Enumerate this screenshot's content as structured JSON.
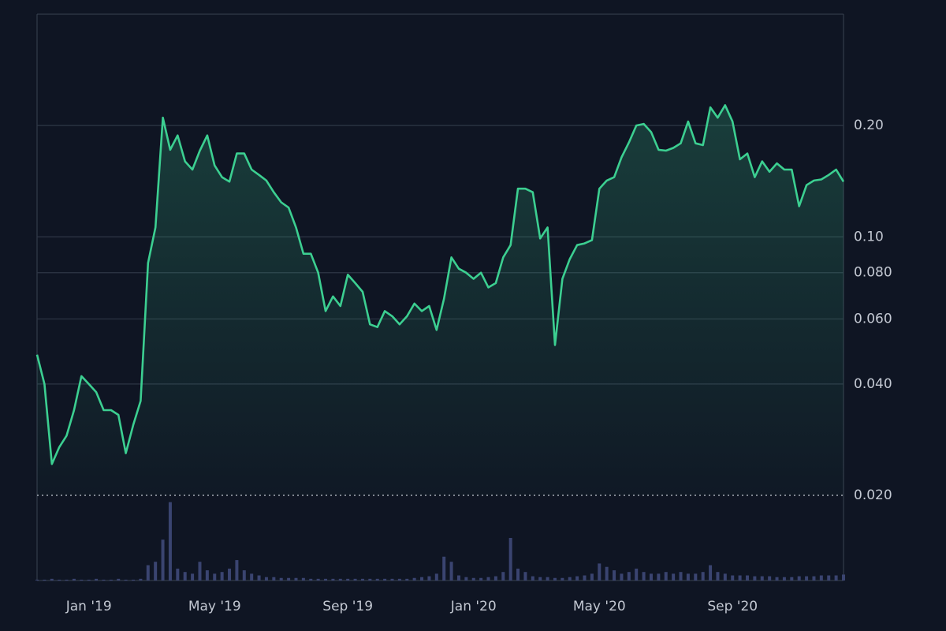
{
  "chart_data": {
    "type": "line",
    "log_y": true,
    "grid": true,
    "categories": [
      null,
      null,
      null,
      null,
      null,
      null,
      null,
      "Jan '19",
      null,
      null,
      null,
      null,
      null,
      null,
      null,
      null,
      null,
      null,
      null,
      null,
      null,
      null,
      null,
      null,
      "May '19",
      null,
      null,
      null,
      null,
      null,
      null,
      null,
      null,
      null,
      null,
      null,
      null,
      null,
      null,
      null,
      null,
      null,
      "Sep '19",
      null,
      null,
      null,
      null,
      null,
      null,
      null,
      null,
      null,
      null,
      null,
      null,
      null,
      null,
      null,
      null,
      "Jan '20",
      null,
      null,
      null,
      null,
      null,
      null,
      null,
      null,
      null,
      null,
      null,
      null,
      null,
      null,
      null,
      null,
      "May '20",
      null,
      null,
      null,
      null,
      null,
      null,
      null,
      null,
      null,
      null,
      null,
      null,
      null,
      null,
      null,
      null,
      null,
      "Sep '20",
      null,
      null,
      null,
      null,
      null,
      null,
      null,
      null,
      null,
      null,
      null,
      null,
      null,
      null,
      null
    ],
    "series": [
      {
        "color": "#3ccf91",
        "values": [
          0.048,
          0.04,
          0.0243,
          0.027,
          0.029,
          0.034,
          0.042,
          0.04,
          0.038,
          0.034,
          0.034,
          0.033,
          0.026,
          0.031,
          0.036,
          0.085,
          0.106,
          0.21,
          0.172,
          0.188,
          0.16,
          0.152,
          0.171,
          0.188,
          0.156,
          0.145,
          0.141,
          0.168,
          0.168,
          0.152,
          0.147,
          0.142,
          0.132,
          0.124,
          0.12,
          0.106,
          0.09,
          0.09,
          0.08,
          0.063,
          0.069,
          0.065,
          0.079,
          0.075,
          0.071,
          0.058,
          0.057,
          0.063,
          0.061,
          0.058,
          0.061,
          0.066,
          0.063,
          0.065,
          0.056,
          0.068,
          0.088,
          0.082,
          0.08,
          0.077,
          0.08,
          0.073,
          0.075,
          0.088,
          0.095,
          0.135,
          0.135,
          0.132,
          0.099,
          0.106,
          0.051,
          0.077,
          0.087,
          0.095,
          0.096,
          0.098,
          0.135,
          0.142,
          0.145,
          0.164,
          0.18,
          0.2,
          0.202,
          0.192,
          0.172,
          0.171,
          0.174,
          0.179,
          0.205,
          0.179,
          0.177,
          0.224,
          0.21,
          0.227,
          0.205,
          0.162,
          0.168,
          0.145,
          0.16,
          0.15,
          0.158,
          0.152,
          0.152,
          0.121,
          0.138,
          0.142,
          0.143,
          0.147,
          0.152,
          0.141
        ]
      },
      {
        "color": "#3a4470",
        "axis": "volume",
        "values": [
          1,
          1,
          2,
          1,
          1,
          2,
          1,
          1,
          2,
          1,
          1,
          2,
          1,
          1,
          2,
          18,
          22,
          48,
          92,
          14,
          10,
          8,
          22,
          12,
          8,
          10,
          14,
          24,
          12,
          8,
          6,
          4,
          4,
          3,
          3,
          3,
          3,
          2,
          2,
          2,
          2,
          2,
          2,
          2,
          2,
          2,
          2,
          2,
          2,
          2,
          2,
          3,
          4,
          5,
          8,
          28,
          22,
          6,
          4,
          3,
          3,
          4,
          5,
          10,
          50,
          14,
          10,
          5,
          4,
          4,
          3,
          3,
          4,
          5,
          6,
          8,
          20,
          16,
          12,
          8,
          10,
          14,
          10,
          8,
          8,
          10,
          8,
          10,
          8,
          8,
          10,
          18,
          10,
          8,
          6,
          6,
          6,
          5,
          5,
          5,
          4,
          4,
          4,
          5,
          5,
          5,
          6,
          6,
          6,
          7
        ]
      }
    ],
    "ylim": [
      0.02,
      0.4
    ],
    "yticks": [
      {
        "value": 0.02,
        "label": "0.020"
      },
      {
        "value": 0.04,
        "label": "0.040"
      },
      {
        "value": 0.06,
        "label": "0.060"
      },
      {
        "value": 0.08,
        "label": "0.080"
      },
      {
        "value": 0.1,
        "label": "0.10"
      },
      {
        "value": 0.2,
        "label": "0.20"
      }
    ],
    "volume_lim": [
      0,
      100
    ]
  }
}
